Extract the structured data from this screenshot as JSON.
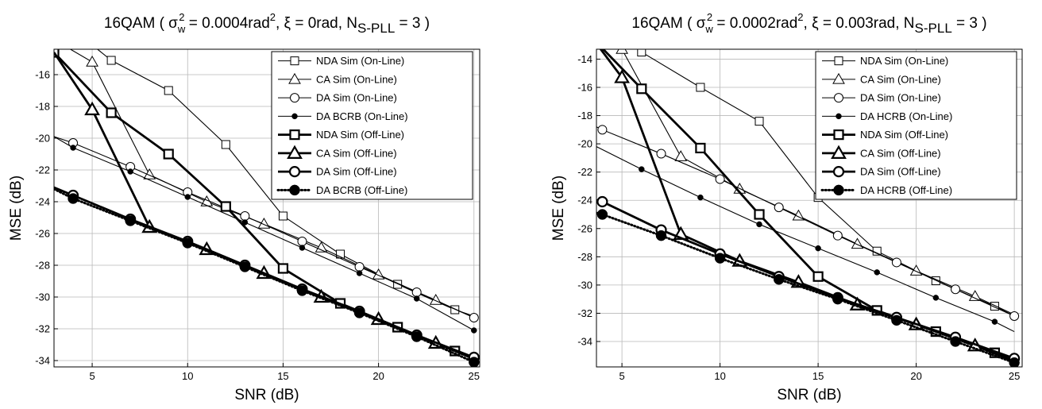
{
  "chart_data": [
    {
      "type": "line",
      "title_parts": {
        "pre": "16QAM ( σ",
        "sub1": "w",
        "sup1": "2",
        "mid": " = 0.0004rad",
        "sup2": "2",
        "post": ", ξ = 0rad, N",
        "sub2": "S-PLL",
        "end": " = 3 )"
      },
      "xlabel": "SNR (dB)",
      "ylabel": "MSE (dB)",
      "xlim": [
        3,
        25.3
      ],
      "ylim": [
        -34.4,
        -14.4
      ],
      "xticks": [
        5,
        10,
        15,
        20,
        25
      ],
      "yticks": [
        -34,
        -32,
        -30,
        -28,
        -26,
        -24,
        -22,
        -20,
        -18,
        -16
      ],
      "grid": true,
      "legend_position": "top-right",
      "series": [
        {
          "name": "NDA Sim (On-Line)",
          "marker": "square",
          "line": "thin",
          "x": [
            3,
            6,
            9,
            12,
            15,
            18,
            21,
            24,
            25
          ],
          "y": [
            -12.2,
            -15.1,
            -17,
            -20.4,
            -24.9,
            -27.3,
            -29.2,
            -30.8,
            -31.2
          ],
          "marker_x": [
            6,
            9,
            12,
            15,
            18,
            21,
            24
          ]
        },
        {
          "name": "CA Sim (On-Line)",
          "marker": "triangle",
          "line": "thin",
          "x": [
            3,
            5,
            8,
            11,
            14,
            17,
            20,
            23,
            25
          ],
          "y": [
            -13.8,
            -15.2,
            -22.3,
            -24,
            -25.4,
            -26.9,
            -28.6,
            -30.2,
            -31.3
          ],
          "marker_x": [
            5,
            8,
            11,
            14,
            17,
            20,
            23
          ]
        },
        {
          "name": "DA Sim (On-Line)",
          "marker": "circle",
          "line": "thin",
          "x": [
            3,
            4,
            7,
            10,
            13,
            16,
            19,
            22,
            25
          ],
          "y": [
            -19.9,
            -20.3,
            -21.8,
            -23.4,
            -24.9,
            -26.5,
            -28.1,
            -29.7,
            -31.3
          ],
          "marker_x": [
            4,
            7,
            10,
            13,
            16,
            19,
            22,
            25
          ]
        },
        {
          "name": "DA BCRB (On-Line)",
          "marker": "dot",
          "line": "thin",
          "x": [
            3,
            4,
            7,
            10,
            13,
            16,
            19,
            22,
            25
          ],
          "y": [
            -19.9,
            -20.6,
            -22.1,
            -23.7,
            -25.3,
            -26.9,
            -28.5,
            -30.1,
            -32.1
          ],
          "marker_x": [
            4,
            7,
            10,
            13,
            16,
            19,
            22,
            25
          ]
        },
        {
          "name": "NDA Sim (Off-Line)",
          "marker": "square",
          "line": "thick",
          "x": [
            3,
            6,
            9,
            12,
            15,
            18,
            21,
            24,
            25
          ],
          "y": [
            -14.6,
            -18.4,
            -21,
            -24.3,
            -28.2,
            -30.4,
            -31.9,
            -33.4,
            -33.9
          ],
          "marker_x": [
            3,
            6,
            9,
            12,
            15,
            18,
            21,
            24
          ]
        },
        {
          "name": "CA Sim (Off-Line)",
          "marker": "triangle",
          "line": "thick",
          "x": [
            3,
            5,
            8,
            11,
            14,
            17,
            20,
            23,
            25
          ],
          "y": [
            -14.6,
            -18.2,
            -25.6,
            -27,
            -28.5,
            -30,
            -31.4,
            -32.9,
            -33.9
          ],
          "marker_x": [
            5,
            8,
            11,
            14,
            17,
            20,
            23
          ]
        },
        {
          "name": "DA Sim (Off-Line)",
          "marker": "circle",
          "line": "thick",
          "x": [
            3,
            4,
            7,
            10,
            13,
            16,
            19,
            22,
            25
          ],
          "y": [
            -23.1,
            -23.6,
            -25.1,
            -26.5,
            -28,
            -29.5,
            -30.9,
            -32.4,
            -33.8
          ],
          "marker_x": [
            4,
            7,
            10,
            13,
            16,
            19,
            22,
            25
          ]
        },
        {
          "name": "DA BCRB (Off-Line)",
          "marker": "dot",
          "line": "dotted",
          "x": [
            3,
            4,
            7,
            10,
            13,
            16,
            19,
            22,
            25
          ],
          "y": [
            -23.2,
            -23.8,
            -25.2,
            -26.6,
            -28.1,
            -29.6,
            -31,
            -32.5,
            -34.1
          ],
          "marker_x": [
            4,
            7,
            10,
            13,
            16,
            19,
            22,
            25
          ]
        }
      ]
    },
    {
      "type": "line",
      "title_parts": {
        "pre": "16QAM ( σ",
        "sub1": "w",
        "sup1": "2",
        "mid": " = 0.0002rad",
        "sup2": "2",
        "post": ", ξ = 0.003rad, N",
        "sub2": "S-PLL",
        "end": " = 3 )"
      },
      "xlabel": "SNR (dB)",
      "ylabel": "MSE (dB)",
      "xlim": [
        3.7,
        25.4
      ],
      "ylim": [
        -35.8,
        -13.3
      ],
      "xticks": [
        5,
        10,
        15,
        20,
        25
      ],
      "yticks": [
        -34,
        -32,
        -30,
        -28,
        -26,
        -24,
        -22,
        -20,
        -18,
        -16,
        -14
      ],
      "grid": true,
      "legend_position": "top-right",
      "series": [
        {
          "name": "NDA Sim (On-Line)",
          "marker": "square",
          "line": "thin",
          "x": [
            3.7,
            6,
            9,
            12,
            15,
            18,
            21,
            24,
            25
          ],
          "y": [
            -10.6,
            -13.5,
            -16,
            -18.4,
            -23.8,
            -27.6,
            -29.7,
            -31.5,
            -32.2
          ],
          "marker_x": [
            6,
            9,
            12,
            15,
            18,
            21,
            24
          ]
        },
        {
          "name": "CA Sim (On-Line)",
          "marker": "triangle",
          "line": "thin",
          "x": [
            3.7,
            5,
            8,
            11,
            14,
            17,
            20,
            23,
            25
          ],
          "y": [
            -12.5,
            -13.3,
            -20.9,
            -23.2,
            -25.1,
            -27.1,
            -29,
            -30.8,
            -32.1
          ],
          "marker_x": [
            5,
            8,
            11,
            14,
            17,
            20,
            23
          ]
        },
        {
          "name": "DA Sim (On-Line)",
          "marker": "circle",
          "line": "thin",
          "x": [
            3.7,
            4,
            7,
            10,
            13,
            16,
            19,
            22,
            25
          ],
          "y": [
            -18.8,
            -19,
            -20.7,
            -22.5,
            -24.5,
            -26.5,
            -28.4,
            -30.3,
            -32.2
          ],
          "marker_x": [
            4,
            7,
            10,
            13,
            16,
            19,
            22,
            25
          ]
        },
        {
          "name": "DA HCRB (On-Line)",
          "marker": "dot",
          "line": "thin",
          "x": [
            3.7,
            6,
            9,
            12,
            15,
            18,
            21,
            24,
            25
          ],
          "y": [
            -20.2,
            -21.8,
            -23.8,
            -25.7,
            -27.4,
            -29.1,
            -30.9,
            -32.6,
            -33.3
          ],
          "marker_x": [
            6,
            9,
            12,
            15,
            18,
            21,
            24
          ]
        },
        {
          "name": "NDA Sim (Off-Line)",
          "marker": "square",
          "line": "thick",
          "x": [
            3.7,
            6,
            9,
            12,
            15,
            18,
            21,
            24,
            25
          ],
          "y": [
            -12.8,
            -16.1,
            -20.3,
            -25,
            -29.4,
            -31.8,
            -33.3,
            -34.8,
            -35.2
          ],
          "marker_x": [
            6,
            9,
            12,
            15,
            18,
            21,
            24
          ]
        },
        {
          "name": "CA Sim (Off-Line)",
          "marker": "triangle",
          "line": "thick",
          "x": [
            3.7,
            5,
            8,
            11,
            14,
            17,
            20,
            23,
            25
          ],
          "y": [
            -12.9,
            -15.3,
            -26.4,
            -28.3,
            -29.8,
            -31.4,
            -32.8,
            -34.3,
            -35.4
          ],
          "marker_x": [
            5,
            8,
            11,
            14,
            17,
            20,
            23
          ]
        },
        {
          "name": "DA Sim (Off-Line)",
          "marker": "circle",
          "line": "thick",
          "x": [
            3.7,
            4,
            7,
            10,
            13,
            16,
            19,
            22,
            25
          ],
          "y": [
            -24,
            -24.1,
            -26.1,
            -27.8,
            -29.4,
            -30.9,
            -32.3,
            -33.7,
            -35.2
          ],
          "marker_x": [
            4,
            7,
            10,
            13,
            16,
            19,
            22,
            25
          ]
        },
        {
          "name": "DA HCRB (Off-Line)",
          "marker": "dot",
          "line": "dotted",
          "x": [
            3.7,
            4,
            7,
            10,
            13,
            16,
            19,
            22,
            25
          ],
          "y": [
            -24.9,
            -25,
            -26.5,
            -28.1,
            -29.6,
            -31,
            -32.5,
            -34,
            -35.5
          ],
          "marker_x": [
            4,
            7,
            10,
            13,
            16,
            19,
            22,
            25
          ]
        }
      ]
    }
  ]
}
